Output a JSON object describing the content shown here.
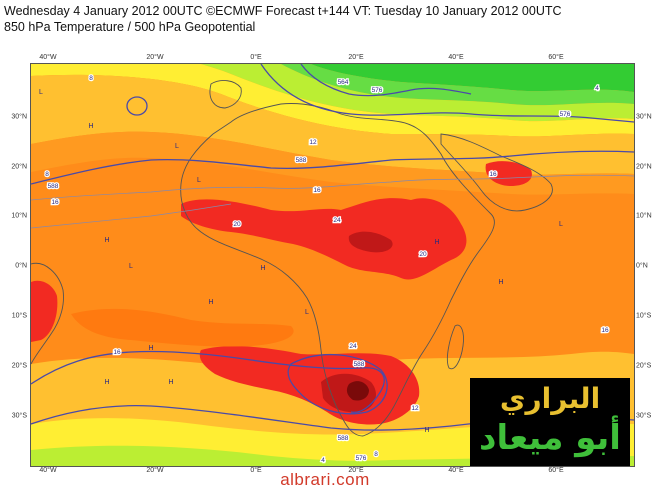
{
  "header": {
    "title_line1": "Wednesday 4 January 2012 00UTC ©ECMWF Forecast t+144 VT: Tuesday 10 January 2012 00UTC",
    "title_line2": "850 hPa Temperature / 500 hPa Geopotential"
  },
  "map": {
    "lon_labels": [
      "40°W",
      "20°W",
      "0°E",
      "20°E",
      "40°E",
      "60°E"
    ],
    "lat_labels_left": [
      "30°N",
      "20°N",
      "10°N",
      "0°N",
      "10°S",
      "20°S",
      "30°S"
    ],
    "lat_labels_right": [
      "30°N",
      "20°N",
      "10°N",
      "0°N",
      "10°S",
      "20°S",
      "30°S"
    ],
    "temperature_labels": [
      "8",
      "4",
      "12",
      "16",
      "20",
      "24",
      "16",
      "20",
      "24",
      "12",
      "8",
      "4",
      "16",
      "8",
      "16",
      "16"
    ],
    "geopotential_labels": [
      "588",
      "564",
      "576",
      "576",
      "588",
      "588",
      "588",
      "576"
    ],
    "pressure_markers": [
      "L",
      "H",
      "L",
      "H",
      "L",
      "H",
      "H",
      "L",
      "H",
      "L",
      "H",
      "H",
      "L",
      "H",
      "H",
      "H"
    ],
    "colors": {
      "green": "#33cc33",
      "light_green": "#66dd44",
      "yellow_green": "#bbee33",
      "yellow": "#ffee33",
      "light_orange": "#ffc030",
      "orange": "#ff9a20",
      "dark_orange": "#ff7a10",
      "red": "#f22a22",
      "dark_red": "#c01818",
      "darkest_red": "#7a0a0a",
      "contour": "#4a4aa8",
      "coastline": "#555555"
    }
  },
  "watermark": {
    "text": "albrari.com"
  },
  "logo": {
    "line1": "البراري",
    "line2": "أبو ميعاد"
  }
}
